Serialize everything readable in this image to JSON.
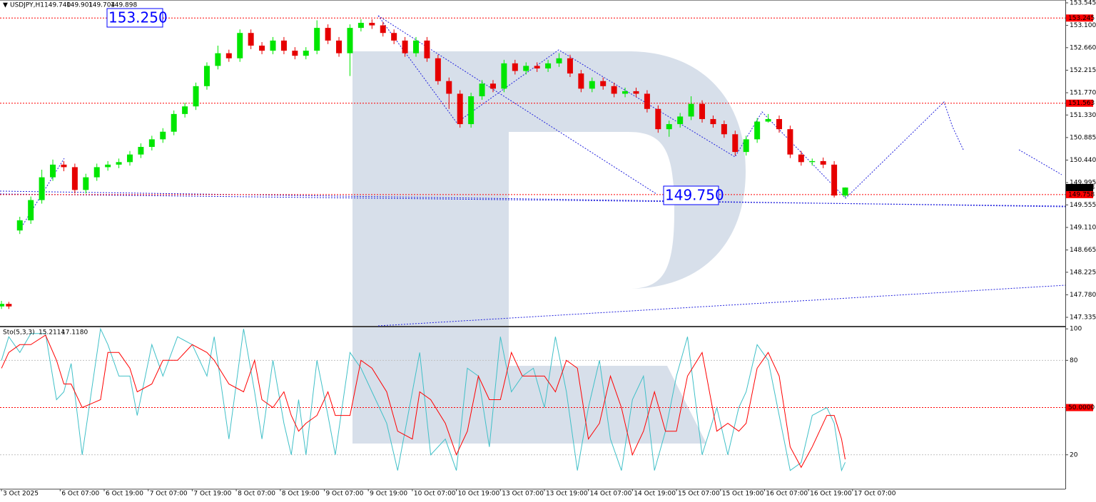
{
  "chart_data": [
    {
      "type": "candlestick",
      "symbol": "USDJPY,H1",
      "header_values": [
        "149.740",
        "149.901",
        "149.704",
        "149.898"
      ],
      "up_color": "#00e600",
      "down_color": "#e60000",
      "x": [
        0,
        2,
        5,
        8,
        11,
        14,
        17,
        20,
        23,
        26,
        29,
        32,
        35,
        38,
        41,
        44,
        47,
        50,
        53,
        56,
        59,
        62,
        65,
        68,
        71,
        74,
        77,
        80,
        83,
        86,
        89,
        92,
        95,
        98,
        101,
        104,
        107,
        110,
        113,
        116,
        119,
        122,
        125,
        128,
        131,
        134,
        137,
        140,
        143,
        146,
        149,
        152,
        155,
        158,
        161,
        164,
        167,
        170,
        173,
        176,
        179,
        182,
        185,
        188,
        191,
        194,
        197,
        200,
        203,
        206,
        209,
        212,
        215,
        218,
        221,
        224,
        227,
        230
      ],
      "open": [
        147.55,
        147.6,
        149.05,
        149.25,
        149.65,
        150.1,
        150.35,
        150.3,
        149.85,
        150.1,
        150.3,
        150.35,
        150.4,
        150.55,
        150.7,
        150.85,
        151.0,
        151.35,
        151.5,
        151.9,
        152.3,
        152.55,
        152.45,
        152.95,
        152.7,
        152.6,
        152.8,
        152.6,
        152.5,
        152.6,
        153.05,
        152.8,
        152.55,
        153.05,
        153.15,
        153.1,
        152.95,
        152.8,
        152.55,
        152.8,
        152.45,
        152.0,
        151.75,
        151.15,
        151.7,
        151.95,
        151.85,
        152.35,
        152.2,
        152.3,
        152.25,
        152.35,
        152.45,
        152.15,
        151.85,
        152.0,
        151.9,
        151.75,
        151.8,
        151.75,
        151.45,
        151.05,
        151.15,
        151.3,
        151.55,
        151.25,
        151.15,
        150.95,
        150.6,
        150.85,
        151.2,
        151.25,
        151.05,
        150.55,
        150.4,
        150.42,
        150.35,
        149.74
      ],
      "high": [
        147.66,
        147.64,
        149.32,
        149.72,
        150.25,
        150.45,
        150.42,
        150.37,
        150.17,
        150.37,
        150.42,
        150.47,
        150.62,
        150.77,
        150.92,
        151.07,
        151.42,
        151.57,
        151.97,
        152.37,
        152.7,
        152.62,
        153.02,
        153.02,
        152.77,
        152.87,
        152.87,
        152.67,
        152.67,
        153.2,
        153.12,
        152.87,
        153.12,
        153.22,
        153.22,
        153.17,
        153.02,
        152.87,
        152.87,
        152.87,
        152.52,
        152.07,
        151.82,
        151.77,
        152.02,
        152.02,
        152.42,
        152.42,
        152.37,
        152.37,
        152.42,
        152.55,
        152.52,
        152.22,
        152.07,
        152.07,
        151.97,
        151.87,
        151.87,
        151.82,
        151.52,
        151.22,
        151.37,
        151.7,
        151.62,
        151.32,
        151.22,
        151.02,
        150.92,
        151.27,
        151.35,
        151.32,
        151.12,
        150.62,
        150.47,
        150.49,
        150.42,
        149.901
      ],
      "low": [
        147.5,
        147.5,
        148.98,
        149.18,
        149.58,
        150.03,
        150.22,
        149.78,
        149.78,
        150.03,
        150.23,
        150.28,
        150.33,
        150.48,
        150.63,
        150.78,
        150.93,
        151.28,
        151.43,
        151.83,
        152.23,
        152.38,
        152.38,
        152.63,
        152.53,
        152.53,
        152.53,
        152.43,
        152.43,
        152.53,
        152.73,
        152.48,
        152.1,
        152.98,
        153.03,
        152.88,
        152.73,
        152.48,
        152.48,
        152.38,
        151.93,
        151.45,
        151.08,
        151.08,
        151.63,
        151.78,
        151.78,
        152.13,
        152.13,
        152.18,
        152.18,
        152.28,
        152.08,
        151.78,
        151.78,
        151.83,
        151.68,
        151.68,
        151.68,
        151.38,
        150.98,
        150.9,
        151.08,
        151.23,
        151.18,
        151.08,
        150.88,
        150.53,
        150.53,
        150.78,
        151.18,
        150.98,
        150.48,
        150.33,
        150.33,
        150.28,
        149.7,
        149.704
      ],
      "close": [
        147.6,
        147.55,
        149.25,
        149.65,
        150.1,
        150.35,
        150.3,
        149.85,
        150.1,
        150.3,
        150.35,
        150.4,
        150.55,
        150.7,
        150.85,
        151.0,
        151.35,
        151.5,
        151.9,
        152.3,
        152.55,
        152.45,
        152.95,
        152.7,
        152.6,
        152.8,
        152.6,
        152.5,
        152.6,
        153.05,
        152.8,
        152.55,
        153.05,
        153.15,
        153.1,
        152.95,
        152.8,
        152.55,
        152.8,
        152.45,
        152.0,
        151.75,
        151.15,
        151.7,
        151.95,
        151.85,
        152.35,
        152.2,
        152.3,
        152.25,
        152.35,
        152.45,
        152.15,
        151.85,
        152.0,
        151.9,
        151.75,
        151.8,
        151.75,
        151.45,
        151.05,
        151.15,
        151.3,
        151.55,
        151.25,
        151.15,
        150.95,
        150.6,
        150.85,
        151.2,
        151.25,
        151.05,
        150.55,
        150.4,
        150.42,
        150.35,
        149.74,
        149.898
      ],
      "xlim": [
        -0.4,
        290
      ],
      "ylim": [
        147.166,
        153.601
      ],
      "yticks": [
        153.545,
        {
          "value": 153.1,
          "label": "153.100"
        },
        {
          "value": 152.66,
          "label": "152.660"
        },
        152.215,
        {
          "value": 151.77,
          "label": "151.770"
        },
        {
          "value": 151.33,
          "label": "151.330"
        },
        150.885,
        {
          "value": 150.44,
          "label": "150.440"
        },
        149.995,
        149.555,
        {
          "value": 149.11,
          "label": "149.110"
        },
        148.665,
        148.225,
        {
          "value": 147.78,
          "label": "147.780"
        },
        147.335
      ],
      "levels": [
        153.245,
        151.563,
        149.758
      ],
      "level_color": "#ff0000",
      "current_price": 149.898,
      "annotations": [
        "153.250",
        "149.750"
      ]
    },
    {
      "type": "line",
      "title": "Sto(5,3,3)",
      "header_values": [
        "15.2114",
        "17.1180"
      ],
      "x": [
        0,
        2,
        5,
        8,
        12,
        15,
        17,
        19,
        22,
        27,
        29,
        32,
        35,
        37,
        41,
        44,
        48,
        52,
        56,
        58,
        62,
        66,
        69,
        71,
        74,
        77,
        79,
        81,
        83,
        86,
        89,
        91,
        95,
        98,
        101,
        105,
        108,
        112,
        114,
        117,
        121,
        124,
        127,
        130,
        133,
        136,
        139,
        142,
        145,
        148,
        151,
        154,
        157,
        160,
        163,
        166,
        169,
        172,
        175,
        178,
        181,
        184,
        187,
        191,
        195,
        198,
        201,
        203,
        206,
        209,
        212,
        215,
        218,
        221,
        225,
        227,
        229,
        230
      ],
      "series": [
        {
          "color": "#40c0c8",
          "values": [
            80,
            95,
            85,
            97,
            97,
            55,
            60,
            78,
            20,
            100,
            90,
            70,
            70,
            45,
            90,
            70,
            95,
            90,
            70,
            95,
            30,
            100,
            60,
            30,
            80,
            40,
            20,
            55,
            20,
            80,
            45,
            20,
            85,
            75,
            60,
            40,
            10,
            60,
            85,
            20,
            30,
            10,
            75,
            70,
            25,
            95,
            60,
            70,
            75,
            50,
            95,
            60,
            10,
            50,
            80,
            30,
            10,
            55,
            70,
            10,
            35,
            70,
            95,
            20,
            50,
            20,
            50,
            60,
            90,
            80,
            45,
            10,
            15,
            45,
            50,
            40,
            10,
            15.2114
          ]
        },
        {
          "color": "#ff0000",
          "values": [
            75,
            85,
            90,
            90,
            96,
            80,
            65,
            65,
            50,
            55,
            85,
            85,
            75,
            60,
            65,
            80,
            80,
            90,
            85,
            80,
            65,
            60,
            80,
            55,
            50,
            60,
            45,
            35,
            40,
            45,
            60,
            45,
            45,
            80,
            75,
            60,
            35,
            30,
            60,
            55,
            40,
            20,
            35,
            70,
            55,
            55,
            85,
            70,
            70,
            70,
            60,
            80,
            75,
            30,
            40,
            70,
            50,
            20,
            35,
            60,
            35,
            35,
            70,
            85,
            35,
            40,
            35,
            40,
            75,
            85,
            70,
            25,
            12,
            25,
            45,
            45,
            30,
            17.118
          ]
        }
      ],
      "xlim": [
        -0.4,
        290
      ],
      "ylim": [
        -1.4,
        101
      ],
      "yticks": [
        100,
        80,
        20
      ],
      "levels": [
        20,
        80
      ],
      "mid_level": {
        "value": 50,
        "label": "50.0000"
      },
      "xticks": [
        {
          "value": 0,
          "label": "3 Oct 2025"
        },
        {
          "value": 16,
          "label": "6 Oct 07:00"
        },
        {
          "value": 28,
          "label": "6 Oct 19:00"
        },
        {
          "value": 40,
          "label": "7 Oct 07:00"
        },
        {
          "value": 52,
          "label": "7 Oct 19:00"
        },
        {
          "value": 64,
          "label": "8 Oct 07:00"
        },
        {
          "value": 76,
          "label": "8 Oct 19:00"
        },
        {
          "value": 88,
          "label": "9 Oct 07:00"
        },
        {
          "value": 100,
          "label": "9 Oct 19:00"
        },
        {
          "value": 112,
          "label": "10 Oct 07:00"
        },
        {
          "value": 124,
          "label": "10 Oct 19:00"
        },
        {
          "value": 136,
          "label": "13 Oct 07:00"
        },
        {
          "value": 148,
          "label": "13 Oct 19:00"
        },
        {
          "value": 160,
          "label": "14 Oct 07:00"
        },
        {
          "value": 172,
          "label": "14 Oct 19:00"
        },
        {
          "value": 184,
          "label": "15 Oct 07:00"
        },
        {
          "value": 196,
          "label": "15 Oct 19:00"
        },
        {
          "value": 208,
          "label": "16 Oct 07:00"
        },
        {
          "value": 220,
          "label": "16 Oct 19:00"
        },
        {
          "value": 232,
          "label": "17 Oct 07:00"
        }
      ]
    }
  ]
}
